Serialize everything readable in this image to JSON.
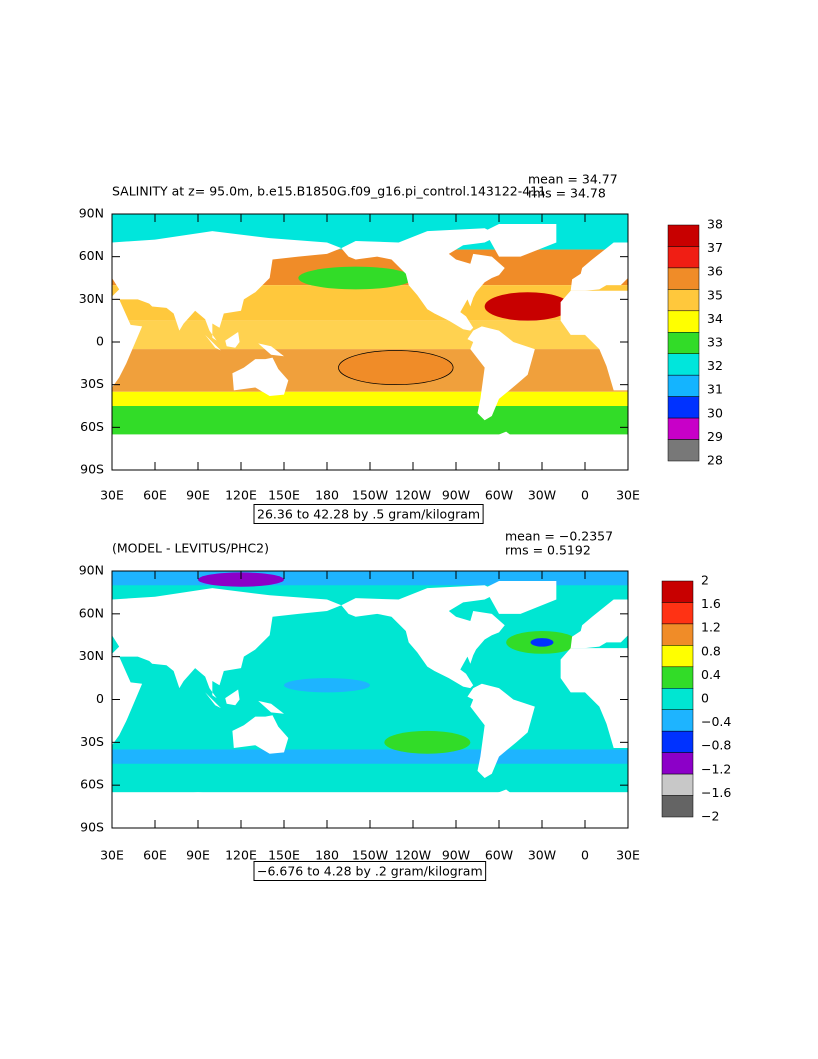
{
  "lat_labels": [
    "90N",
    "60N",
    "30N",
    "0",
    "30S",
    "60S",
    "90S"
  ],
  "lon_labels": [
    "30E",
    "60E",
    "90E",
    "120E",
    "150E",
    "180",
    "150W",
    "120W",
    "90W",
    "60W",
    "30W",
    "0",
    "30E"
  ],
  "panels": [
    {
      "title": "SALINITY at z=  95.0m, b.e15.B1850G.f09_g16.pi_control.143122-411",
      "mean": "mean = 34.77",
      "rms": "rms = 34.78",
      "range_label": "26.36 to 42.28 by .5 gram/kilogram",
      "colorbar": {
        "labels": [
          "38",
          "37",
          "36",
          "35",
          "34",
          "33",
          "32",
          "31",
          "30",
          "29",
          "28"
        ],
        "colors": [
          "#c80000",
          "#f01e14",
          "#f08c28",
          "#ffc83c",
          "#ffff00",
          "#32dc28",
          "#00e6dc",
          "#14b4ff",
          "#0032ff",
          "#c800c8",
          "#787878"
        ]
      }
    },
    {
      "title": "(MODEL - LEVITUS/PHC2)",
      "mean": "mean = −0.2357",
      "rms": "rms = 0.5192",
      "range_label": "−6.676 to 4.28 by .2 gram/kilogram",
      "colorbar": {
        "labels": [
          "2",
          "1.6",
          "1.2",
          "0.8",
          "0.4",
          "0",
          "−0.4",
          "−0.8",
          "−1.2",
          "−1.6",
          "−2"
        ],
        "colors": [
          "#c80000",
          "#ff3214",
          "#f08c28",
          "#ffff00",
          "#32dc28",
          "#00e6d2",
          "#1eb4ff",
          "#0032ff",
          "#8c00c8",
          "#c8c8c8",
          "#646464"
        ]
      }
    }
  ]
}
